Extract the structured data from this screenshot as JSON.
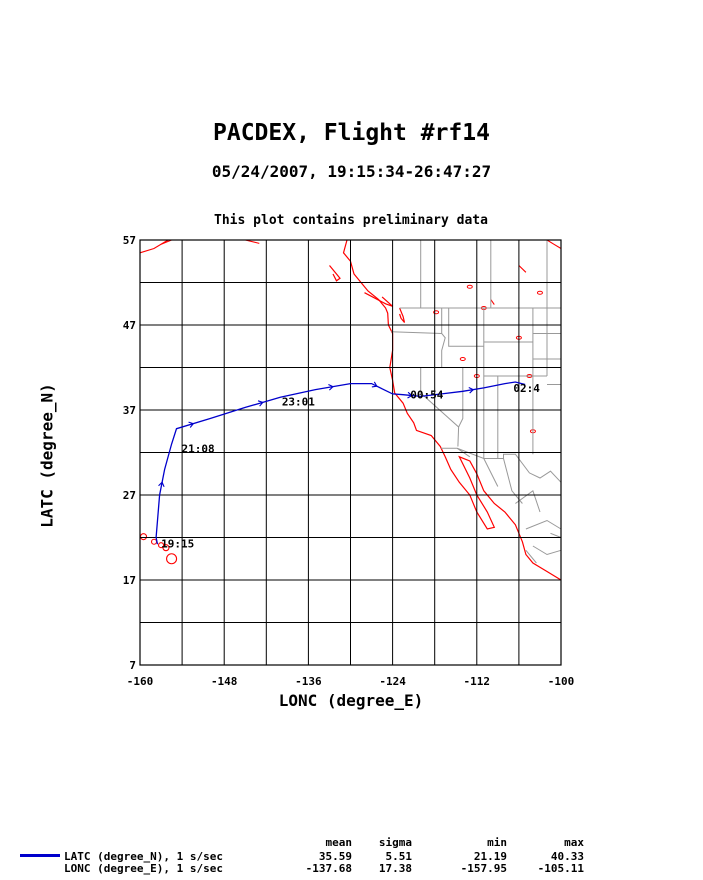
{
  "title": "PACDEX, Flight #rf14",
  "subtitle": "05/24/2007, 19:15:34-26:47:27",
  "note": "This plot contains preliminary data",
  "chart_data": {
    "type": "line",
    "xlabel": "LONC (degree_E)",
    "ylabel": "LATC (degree_N)",
    "xlim": [
      -160,
      -100
    ],
    "ylim": [
      7,
      57
    ],
    "x_ticks": [
      "-160",
      "-148",
      "-136",
      "-124",
      "-112",
      "-100"
    ],
    "y_ticks": [
      "7",
      "17",
      "27",
      "37",
      "47",
      "57"
    ],
    "grid": true,
    "series": [
      {
        "name": "LATC (degree_N), 1 s/sec",
        "color": "#0000cc",
        "x": [
          -157.5,
          -157.7,
          -157.5,
          -157.2,
          -156.5,
          -155.5,
          -154.8,
          -150,
          -145,
          -140,
          -135,
          -130,
          -127,
          -125.5,
          -124,
          -122.5,
          -120,
          -117,
          -114,
          -111,
          -108,
          -106.5,
          -105.1
        ],
        "y": [
          21.2,
          22,
          24,
          27,
          30,
          33,
          34.8,
          36,
          37.3,
          38.5,
          39.4,
          40.1,
          40.1,
          39.5,
          38.9,
          38.8,
          38.6,
          38.9,
          39.2,
          39.6,
          40.1,
          40.3,
          40
        ]
      }
    ],
    "annotations": [
      {
        "text": "19:15",
        "x": -157.7,
        "y": 21.3
      },
      {
        "text": "21:08",
        "x": -154.8,
        "y": 32.5
      },
      {
        "text": "23:01",
        "x": -140.5,
        "y": 38.0
      },
      {
        "text": "00:54",
        "x": -122.2,
        "y": 38.8
      },
      {
        "text": "02:4",
        "x": -107.5,
        "y": 39.6
      }
    ]
  },
  "map": {
    "coast_color": "#ff0000",
    "border_color": "#999999",
    "grid_color": "#000000"
  },
  "stats": {
    "headers": [
      "mean",
      "sigma",
      "min",
      "max"
    ],
    "rows": [
      {
        "label": "LATC (degree_N), 1 s/sec",
        "mean": "35.59",
        "sigma": "5.51",
        "min": "21.19",
        "max": "40.33"
      },
      {
        "label": "LONC (degree_E), 1 s/sec",
        "mean": "-137.68",
        "sigma": "17.38",
        "min": "-157.95",
        "max": "-105.11"
      }
    ]
  }
}
